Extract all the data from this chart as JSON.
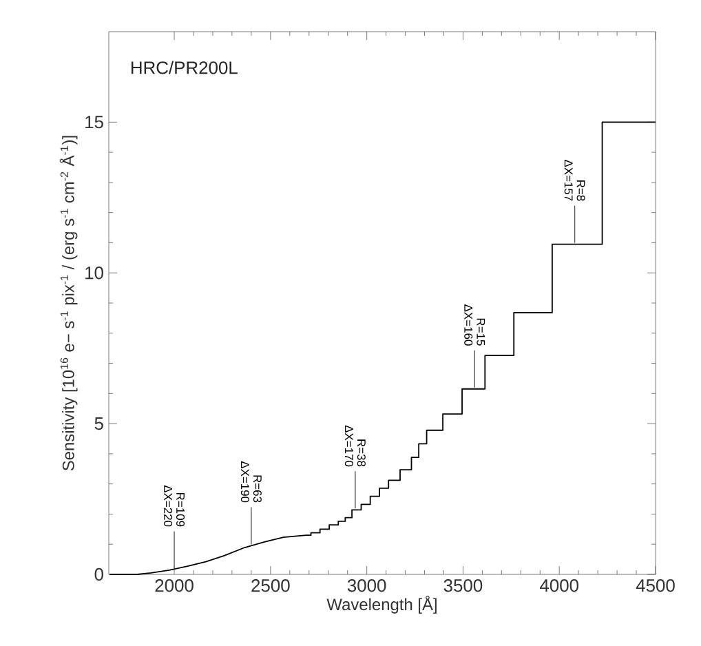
{
  "chart_data": {
    "type": "line",
    "xlabel": "Wavelength [Å]",
    "ylabel": "Sensitivity [10$^{16}$ e− s$^{-1}$ pix$^{-1}$ / (erg s$^{-1}$ cm$^{-2}$ Å$^{-1}$)]",
    "xlim": [
      1660,
      4500
    ],
    "ylim": [
      0,
      18
    ],
    "xticks": [
      2000,
      2500,
      3000,
      3500,
      4000,
      4500
    ],
    "yticks": [
      0,
      5,
      10,
      15
    ],
    "series": [
      {
        "color": "#000000",
        "x": [
          1665,
          1808,
          1879,
          1974,
          2069,
          2164,
          2259,
          2366,
          2472,
          2567,
          2686,
          2710,
          2710,
          2757,
          2757,
          2805,
          2805,
          2852,
          2852,
          2888,
          2888,
          2923,
          2923,
          2971,
          2971,
          3018,
          3018,
          3066,
          3066,
          3113,
          3113,
          3173,
          3173,
          3232,
          3232,
          3270,
          3270,
          3311,
          3311,
          3395,
          3395,
          3495,
          3495,
          3614,
          3614,
          3764,
          3764,
          3963,
          3963,
          4223,
          4223,
          4500
        ],
        "values": [
          0,
          0,
          0.05,
          0.14,
          0.27,
          0.42,
          0.62,
          0.89,
          1.08,
          1.23,
          1.3,
          1.3,
          1.38,
          1.38,
          1.5,
          1.5,
          1.64,
          1.64,
          1.76,
          1.76,
          1.88,
          1.88,
          2.14,
          2.14,
          2.32,
          2.32,
          2.59,
          2.59,
          2.86,
          2.86,
          3.12,
          3.12,
          3.47,
          3.47,
          3.88,
          3.88,
          4.33,
          4.33,
          4.78,
          4.78,
          5.32,
          5.32,
          6.15,
          6.15,
          7.26,
          7.26,
          8.68,
          8.68,
          10.95,
          10.95,
          15.0,
          15.0
        ]
      }
    ],
    "annotations": [
      "HRC/PR200L",
      {
        "text": "R=109",
        "x": 2000,
        "y": 0.15
      },
      {
        "text": "ΔX=220",
        "x": 2000,
        "y": 0.15
      },
      {
        "text": "R=63",
        "x": 2400,
        "y": 0.95
      },
      {
        "text": "ΔX=190",
        "x": 2400,
        "y": 0.95
      },
      {
        "text": "R=38",
        "x": 2940,
        "y": 2.14
      },
      {
        "text": "ΔX=170",
        "x": 2940,
        "y": 2.14
      },
      {
        "text": "R=15",
        "x": 3560,
        "y": 6.15
      },
      {
        "text": "ΔX=160",
        "x": 3560,
        "y": 6.15
      },
      {
        "text": "R=8",
        "x": 4080,
        "y": 10.95
      },
      {
        "text": "ΔX=157",
        "x": 4080,
        "y": 10.95
      }
    ]
  }
}
